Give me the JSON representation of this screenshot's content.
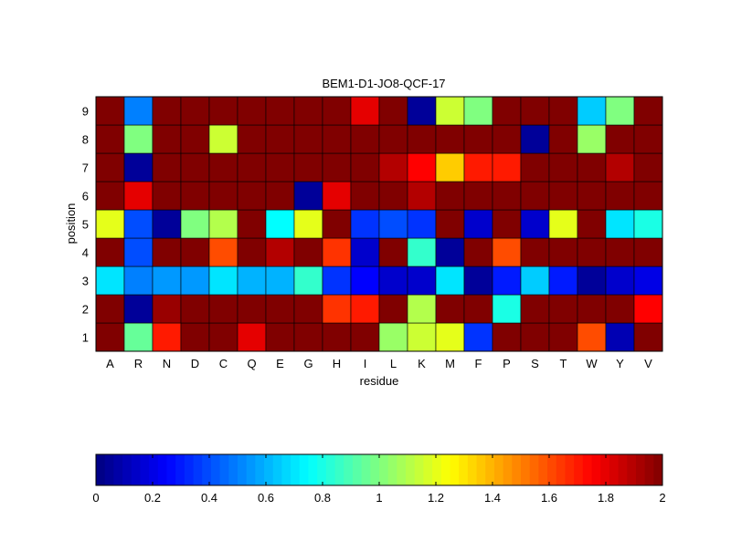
{
  "chart_data": {
    "type": "heatmap",
    "title": "BEM1-D1-JO8-QCF-17",
    "xlabel": "residue",
    "ylabel": "position",
    "colormap": "jet",
    "clim": [
      0,
      2
    ],
    "x_categories": [
      "A",
      "R",
      "N",
      "D",
      "C",
      "Q",
      "E",
      "G",
      "H",
      "I",
      "L",
      "K",
      "M",
      "F",
      "P",
      "S",
      "T",
      "W",
      "Y",
      "V"
    ],
    "y_categories": [
      "1",
      "2",
      "3",
      "4",
      "5",
      "6",
      "7",
      "8",
      "9"
    ],
    "values": [
      [
        2.0,
        0.95,
        1.7,
        2.0,
        2.0,
        1.8,
        2.0,
        2.0,
        2.0,
        2.0,
        1.05,
        1.15,
        1.2,
        0.35,
        2.0,
        2.0,
        2.0,
        1.6,
        0.1,
        2.0
      ],
      [
        2.0,
        0.05,
        1.95,
        2.0,
        2.0,
        2.0,
        2.0,
        2.0,
        1.65,
        1.7,
        2.0,
        1.1,
        2.0,
        2.0,
        0.8,
        2.0,
        2.0,
        2.0,
        2.0,
        1.75
      ],
      [
        0.7,
        0.5,
        0.55,
        0.55,
        0.7,
        0.6,
        0.6,
        0.85,
        0.35,
        0.25,
        0.15,
        0.15,
        0.7,
        0.05,
        0.3,
        0.65,
        0.3,
        0.05,
        0.15,
        0.2
      ],
      [
        2.0,
        0.4,
        2.0,
        2.0,
        1.6,
        2.0,
        1.9,
        2.0,
        1.65,
        0.15,
        2.0,
        0.85,
        0.05,
        2.0,
        1.6,
        2.0,
        2.0,
        2.0,
        2.0,
        2.0
      ],
      [
        1.2,
        0.4,
        0.05,
        1.0,
        1.1,
        2.0,
        0.75,
        1.2,
        2.0,
        0.35,
        0.4,
        0.35,
        2.0,
        0.15,
        2.0,
        0.15,
        1.2,
        2.0,
        0.7,
        0.8
      ],
      [
        2.0,
        1.8,
        2.0,
        2.0,
        2.0,
        2.0,
        2.0,
        0.05,
        1.8,
        2.0,
        2.0,
        1.9,
        2.0,
        2.0,
        2.0,
        2.0,
        2.0,
        2.0,
        2.0,
        2.0
      ],
      [
        2.0,
        0.05,
        2.0,
        2.0,
        2.0,
        2.0,
        2.0,
        2.0,
        2.0,
        2.0,
        1.9,
        1.75,
        1.35,
        1.7,
        1.7,
        2.0,
        2.0,
        2.0,
        1.9,
        2.0
      ],
      [
        2.0,
        1.0,
        2.0,
        2.0,
        1.15,
        2.0,
        2.0,
        2.0,
        2.0,
        2.0,
        2.0,
        2.0,
        2.0,
        2.0,
        2.0,
        0.05,
        2.0,
        1.05,
        2.0,
        2.0
      ],
      [
        2.0,
        0.5,
        2.0,
        2.0,
        2.0,
        2.0,
        2.0,
        2.0,
        2.0,
        1.8,
        2.0,
        0.05,
        1.15,
        1.0,
        2.0,
        2.0,
        2.0,
        0.65,
        1.0,
        2.0
      ]
    ],
    "colorbar": {
      "ticks": [
        0,
        0.2,
        0.4,
        0.6,
        0.8,
        1,
        1.2,
        1.4,
        1.6,
        1.8,
        2
      ],
      "tick_labels": [
        "0",
        "0.2",
        "0.4",
        "0.6",
        "0.8",
        "1",
        "1.2",
        "1.4",
        "1.6",
        "1.8",
        "2"
      ]
    }
  }
}
